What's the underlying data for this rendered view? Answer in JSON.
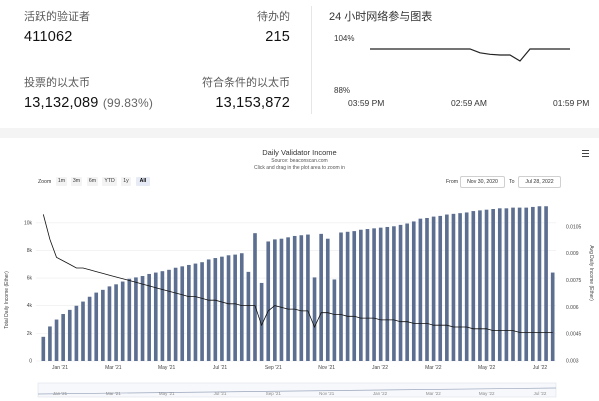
{
  "stats": {
    "active_validators_label": "活跃的验证者",
    "active_validators_value": "411062",
    "pending_label": "待办的",
    "pending_value": "215",
    "voting_ether_label": "投票的以太币",
    "voting_ether_value": "13,132,089",
    "voting_ether_pct": "(99.83%)",
    "eligible_ether_label": "符合条件的以太币",
    "eligible_ether_value": "13,153,872"
  },
  "participation": {
    "title": "24 小时网络参与图表",
    "y_top_label": "104%",
    "y_bottom_label": "88%",
    "x_labels": [
      "03:59 PM",
      "02:59 AM",
      "01:59 PM"
    ],
    "series": [
      100,
      100,
      100,
      100,
      100,
      100,
      100,
      100,
      100,
      100,
      100,
      99,
      98.6,
      98.4,
      98.4,
      96.8,
      100,
      100,
      100,
      100,
      100
    ]
  },
  "chart_data": {
    "type": "bar",
    "title": "Daily Validator Income",
    "subtitle": "Source: beaconscan.com",
    "subtitle2": "Click and drag in the plot area to zoom in",
    "menu_icon": "hamburger-icon",
    "zoom_label": "Zoom",
    "zoom_buttons": [
      "1m",
      "3m",
      "6m",
      "YTD",
      "1y",
      "All"
    ],
    "zoom_selected": "All",
    "from_label": "From",
    "from_value": "Nov 30, 2020",
    "to_label": "To",
    "to_value": "Jul 28, 2022",
    "ylabel_left": "Total Daily Income (Ether)",
    "ylabel_right": "Avg Daily Income (Ether)",
    "y_left_ticks": [
      "0",
      "2k",
      "4k",
      "6k",
      "8k",
      "10k"
    ],
    "y_right_ticks": [
      "0.003",
      "0.0045",
      "0.006",
      "0.0075",
      "0.009",
      "0.0105"
    ],
    "x_ticks": [
      "Jan '21",
      "Mar '21",
      "May '21",
      "Jul '21",
      "Sep '21",
      "Nov '21",
      "Jan '22",
      "Mar '22",
      "May '22",
      "Jul '22"
    ],
    "ylim_left": [
      0,
      11000
    ],
    "ylim_right": [
      0.003,
      0.0115
    ],
    "bar_color": "#5d6f90",
    "line_color": "#111111",
    "bars": [
      1750,
      2500,
      3000,
      3400,
      3700,
      4000,
      4300,
      4650,
      4950,
      5150,
      5400,
      5550,
      5750,
      5950,
      6050,
      6150,
      6300,
      6400,
      6500,
      6600,
      6750,
      6850,
      6950,
      7050,
      7150,
      7350,
      7450,
      7550,
      7650,
      7700,
      7800,
      6450,
      9250,
      5650,
      8650,
      8800,
      8850,
      8950,
      9050,
      9100,
      9150,
      6050,
      9200,
      8850,
      5900,
      9300,
      9350,
      9400,
      9500,
      9550,
      9600,
      9650,
      9700,
      9750,
      9850,
      9950,
      10100,
      10300,
      10350,
      10450,
      10500,
      10600,
      10650,
      10700,
      10750,
      10850,
      10900,
      10950,
      11000,
      11050,
      11050,
      11100,
      11100,
      11100,
      11150,
      11200,
      11200,
      6400
    ],
    "avg_line": [
      0.0112,
      0.0098,
      0.0088,
      0.0086,
      0.0084,
      0.0082,
      0.0082,
      0.0081,
      0.008,
      0.0079,
      0.0078,
      0.0077,
      0.0076,
      0.0075,
      0.0074,
      0.0073,
      0.0072,
      0.0071,
      0.007,
      0.0069,
      0.0068,
      0.0067,
      0.0066,
      0.0066,
      0.0065,
      0.0064,
      0.0064,
      0.0063,
      0.0062,
      0.0062,
      0.0061,
      0.0061,
      0.0061,
      0.005,
      0.0058,
      0.0061,
      0.006,
      0.0059,
      0.0059,
      0.0058,
      0.0058,
      0.0049,
      0.0057,
      0.0057,
      0.0056,
      0.0056,
      0.0055,
      0.0055,
      0.0054,
      0.0054,
      0.0054,
      0.0053,
      0.0053,
      0.0053,
      0.0052,
      0.0052,
      0.0051,
      0.0051,
      0.0051,
      0.005,
      0.005,
      0.005,
      0.0049,
      0.0049,
      0.0049,
      0.0048,
      0.0048,
      0.0048,
      0.0047,
      0.0047,
      0.0047,
      0.0047,
      0.0046,
      0.0046,
      0.0046,
      0.0046,
      0.0046,
      0.0046
    ],
    "navigator_ticks": [
      "Jan '21",
      "Mar '21",
      "May '21",
      "Jul '21",
      "Sep '21",
      "Nov '21",
      "Jan '22",
      "Mar '22",
      "May '22",
      "Jul '22"
    ]
  }
}
